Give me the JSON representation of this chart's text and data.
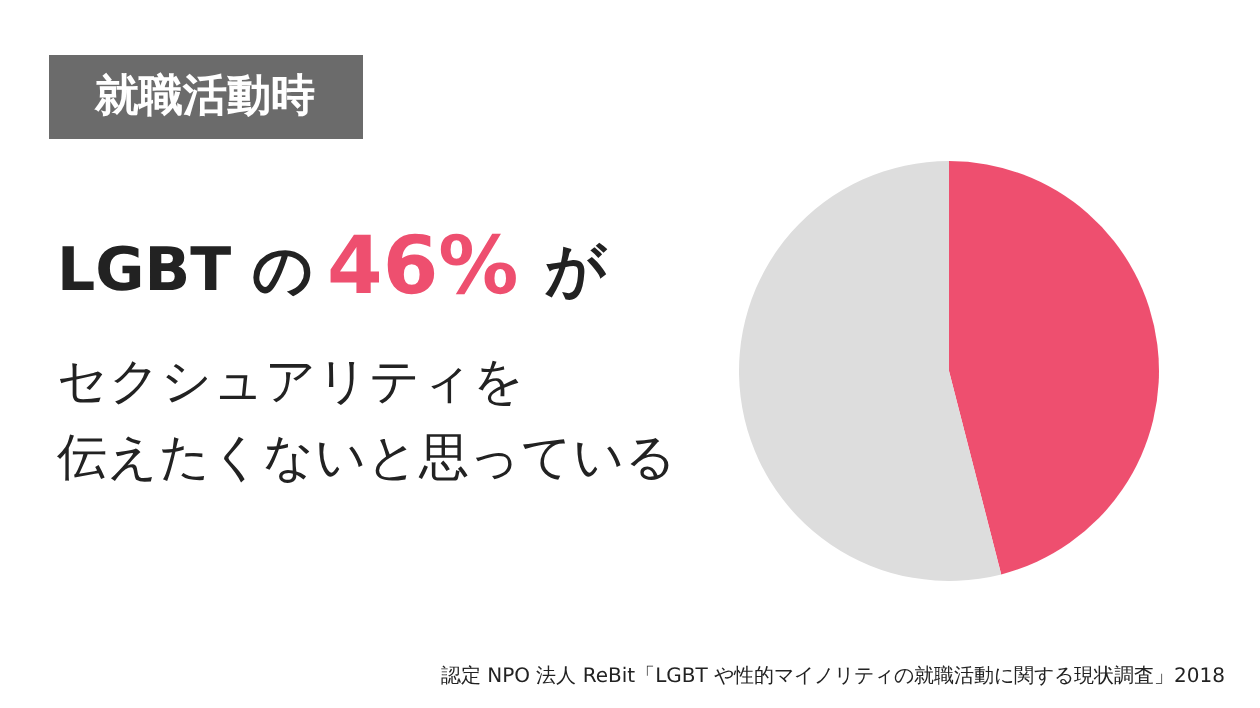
{
  "chart_data": {
    "type": "pie",
    "title": "就職活動時",
    "categories": [
      null,
      null
    ],
    "values": [
      46,
      54
    ],
    "colors": [
      "#ee4f6f",
      "#dddddd"
    ],
    "annotations": [
      "LGBT の",
      "46%",
      "が",
      "セクシュアリティを",
      "伝えたくないと思っている",
      "認定 NPO 法人 ReBit「LGBT や性的マイノリティの就職活動に関する現状調査」2018"
    ]
  }
}
